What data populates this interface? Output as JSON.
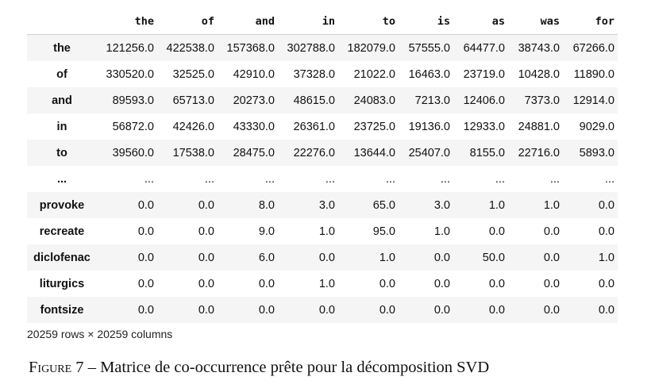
{
  "table": {
    "columns": [
      "the",
      "of",
      "and",
      "in",
      "to",
      "is",
      "as",
      "was",
      "for"
    ],
    "rows": [
      {
        "index": "the",
        "values": [
          "121256.0",
          "422538.0",
          "157368.0",
          "302788.0",
          "182079.0",
          "57555.0",
          "64477.0",
          "38743.0",
          "67266.0"
        ]
      },
      {
        "index": "of",
        "values": [
          "330520.0",
          "32525.0",
          "42910.0",
          "37328.0",
          "21022.0",
          "16463.0",
          "23719.0",
          "10428.0",
          "11890.0"
        ]
      },
      {
        "index": "and",
        "values": [
          "89593.0",
          "65713.0",
          "20273.0",
          "48615.0",
          "24083.0",
          "7213.0",
          "12406.0",
          "7373.0",
          "12914.0"
        ]
      },
      {
        "index": "in",
        "values": [
          "56872.0",
          "42426.0",
          "43330.0",
          "26361.0",
          "23725.0",
          "19136.0",
          "12933.0",
          "24881.0",
          "9029.0"
        ]
      },
      {
        "index": "to",
        "values": [
          "39560.0",
          "17538.0",
          "28475.0",
          "22276.0",
          "13644.0",
          "25407.0",
          "8155.0",
          "22716.0",
          "5893.0"
        ]
      },
      {
        "index": "...",
        "values": [
          "...",
          "...",
          "...",
          "...",
          "...",
          "...",
          "...",
          "...",
          "..."
        ]
      },
      {
        "index": "provoke",
        "values": [
          "0.0",
          "0.0",
          "8.0",
          "3.0",
          "65.0",
          "3.0",
          "1.0",
          "1.0",
          "0.0"
        ]
      },
      {
        "index": "recreate",
        "values": [
          "0.0",
          "0.0",
          "9.0",
          "1.0",
          "95.0",
          "1.0",
          "0.0",
          "0.0",
          "0.0"
        ]
      },
      {
        "index": "diclofenac",
        "values": [
          "0.0",
          "0.0",
          "6.0",
          "0.0",
          "1.0",
          "0.0",
          "50.0",
          "0.0",
          "1.0"
        ]
      },
      {
        "index": "liturgics",
        "values": [
          "0.0",
          "0.0",
          "0.0",
          "1.0",
          "0.0",
          "0.0",
          "0.0",
          "0.0",
          "0.0"
        ]
      },
      {
        "index": "fontsize",
        "values": [
          "0.0",
          "0.0",
          "0.0",
          "0.0",
          "0.0",
          "0.0",
          "0.0",
          "0.0",
          "0.0"
        ]
      }
    ],
    "shape_text": "20259 rows × 20259 columns"
  },
  "caption": {
    "label": "Figure 7",
    "separator": " – ",
    "text": "Matrice de co-occurrence prête pour la décomposition SVD"
  }
}
